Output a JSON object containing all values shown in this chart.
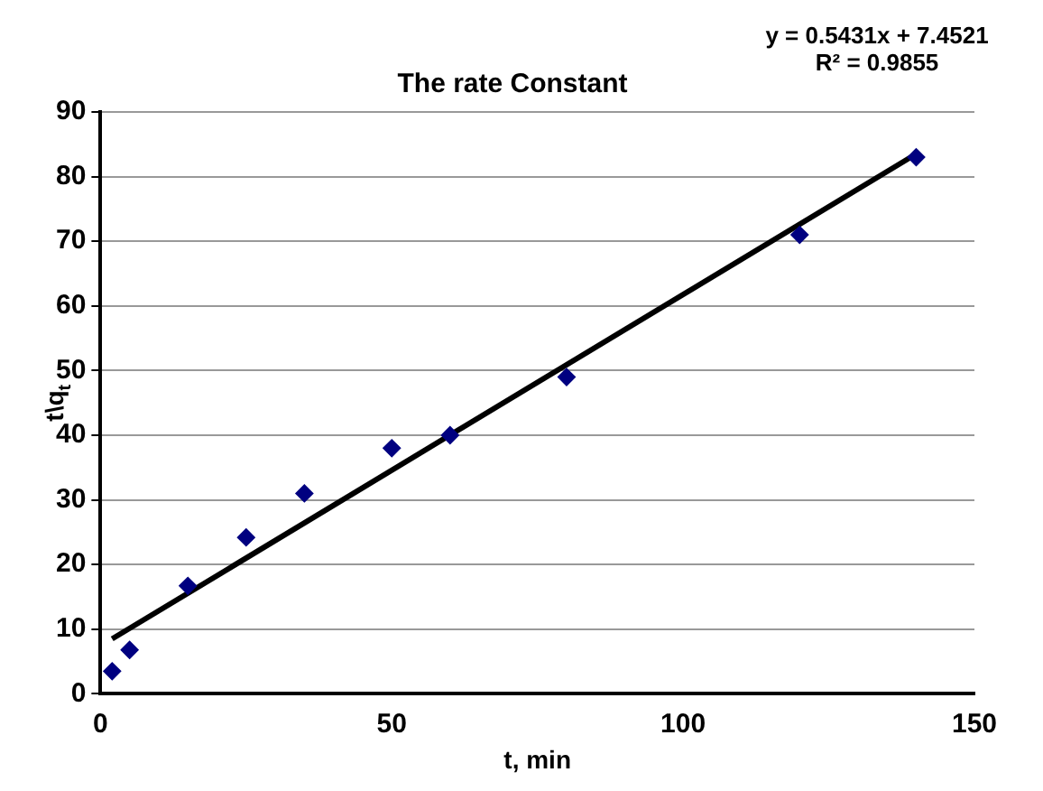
{
  "chart_data": {
    "type": "scatter",
    "title": "The rate Constant",
    "xlabel": "t, min",
    "ylabel": "t\\q$_{t}$",
    "annotations": [
      "y = 0.5431x + 7.4521",
      "R² = 0.9855"
    ],
    "series": [
      {
        "color": "#000080",
        "marker": "diamond",
        "x": [
          2,
          5,
          15,
          25,
          35,
          50,
          60,
          80,
          120,
          140
        ],
        "values": [
          3.5,
          6.8,
          16.7,
          24.2,
          31,
          38,
          40,
          49,
          71,
          83
        ]
      },
      {
        "type": "line",
        "color": "#000000",
        "marker": "none",
        "x": [
          2,
          140
        ],
        "values": [
          8.5,
          83.5
        ]
      }
    ],
    "xlim": [
      0,
      150
    ],
    "xticks": [
      0,
      50,
      100,
      150
    ],
    "ylim": [
      0,
      90
    ],
    "yticks": [
      0,
      10,
      20,
      30,
      40,
      50,
      60,
      70,
      80,
      90
    ],
    "grid": "y",
    "legend": false
  }
}
